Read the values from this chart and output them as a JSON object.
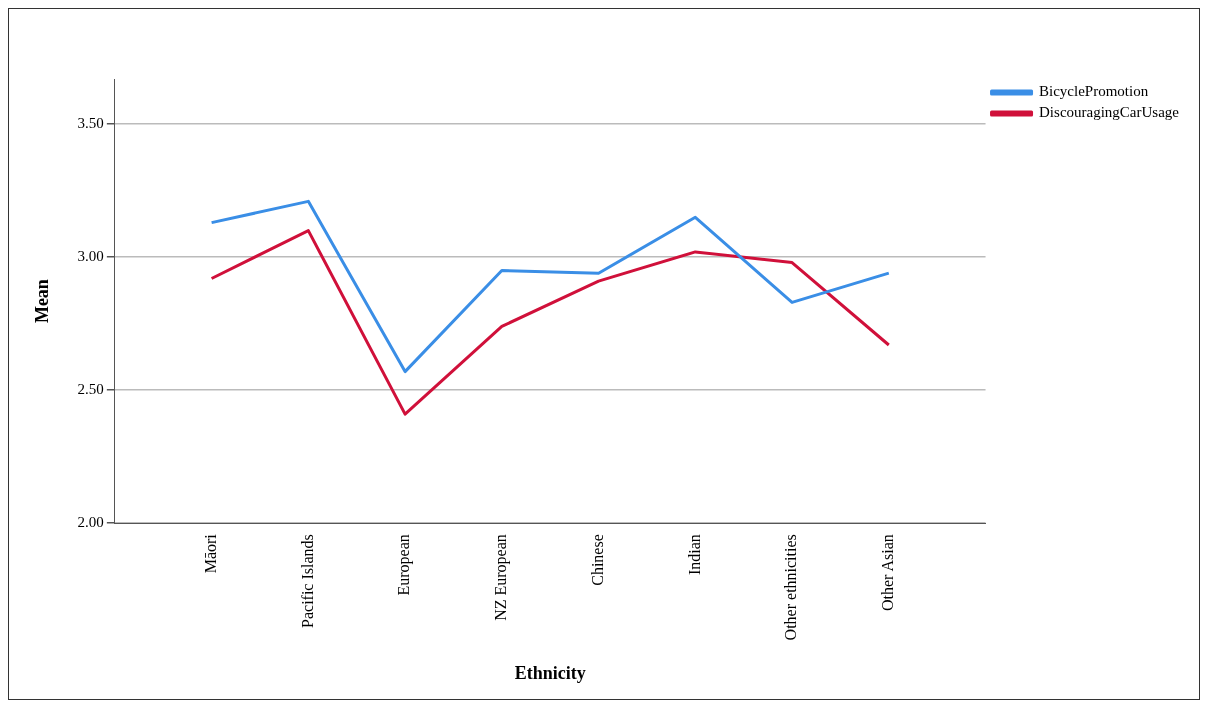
{
  "chart_data": {
    "type": "line",
    "xlabel": "Ethnicity",
    "ylabel": "Mean",
    "categories": [
      "Māori",
      "Pacific Islands",
      "European",
      "NZ European",
      "Chinese",
      "Indian",
      "Other ethnicities",
      "Other Asian"
    ],
    "series": [
      {
        "name": "BicyclePromotion",
        "color": "#3a8ee6",
        "values": [
          3.13,
          3.21,
          2.57,
          2.95,
          2.94,
          3.15,
          2.83,
          2.94
        ]
      },
      {
        "name": "DiscouragingCarUsage",
        "color": "#d0103a",
        "values": [
          2.92,
          3.1,
          2.41,
          2.74,
          2.91,
          3.02,
          2.98,
          2.67
        ]
      }
    ],
    "ylim": [
      2,
      3.67
    ],
    "yticks": [
      {
        "value": 2,
        "label": "2.00"
      },
      {
        "value": 2.5,
        "label": "2.50"
      },
      {
        "value": 3,
        "label": "3.00"
      },
      {
        "value": 3.5,
        "label": "3.50"
      }
    ],
    "grid": "y",
    "legend": "top right",
    "marker": "none",
    "line_style": "solid"
  }
}
